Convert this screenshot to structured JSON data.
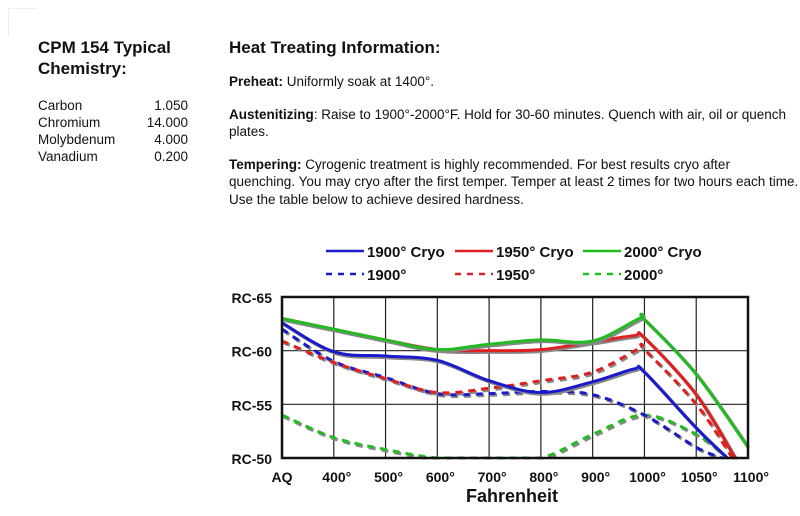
{
  "chemistry": {
    "title": "CPM 154 Typical Chemistry:",
    "title_line1": "CPM 154 Typical",
    "title_line2": "Chemistry:",
    "elements": [
      {
        "name": "Carbon",
        "value": "1.050"
      },
      {
        "name": "Chromium",
        "value": "14.000"
      },
      {
        "name": "Molybdenum",
        "value": "4.000"
      },
      {
        "name": "Vanadium",
        "value": "0.200"
      }
    ]
  },
  "heat_treating": {
    "title": "Heat Treating Information:",
    "preheat": {
      "label": "Preheat:",
      "text": " Uniformly soak at 1400°."
    },
    "austenitizing": {
      "label": "Austenitizing",
      "text": ": Raise to 1900°-2000°F.  Hold for 30-60 minutes.  Quench with air, oil or quench plates."
    },
    "tempering": {
      "label": "Tempering:",
      "text": " Cyrogenic treatment is highly recommended.  For best results cryo after quenching.  You may cryo after the first temper.  Temper at least 2 times for two hours each time.  Use the table below to achieve desired hardness."
    }
  },
  "chart_data": {
    "type": "line",
    "title": "",
    "xlabel": "Fahrenheit",
    "ylabel": "",
    "x_categories": [
      "AQ",
      "400°",
      "500°",
      "600°",
      "700°",
      "800°",
      "900°",
      "1000°",
      "1050°",
      "1100°"
    ],
    "y_ticks": [
      {
        "value": 65,
        "label": "RC-65"
      },
      {
        "value": 60,
        "label": "RC-60"
      },
      {
        "value": 55,
        "label": "RC-55"
      },
      {
        "value": 50,
        "label": "RC-50"
      }
    ],
    "ylim": [
      50,
      65
    ],
    "grid": true,
    "legend_position": "top",
    "series": [
      {
        "name": "1900° Cryo",
        "color": "#1a1acc",
        "dashed": false,
        "points": [
          [
            0,
            62.6
          ],
          [
            1,
            59.9
          ],
          [
            2,
            59.5
          ],
          [
            3,
            59.1
          ],
          [
            4,
            57.2
          ],
          [
            5,
            56.1
          ],
          [
            6,
            57.1
          ],
          [
            6.8,
            58.3
          ],
          [
            7,
            58.0
          ],
          [
            8,
            52.8
          ],
          [
            8.6,
            50
          ]
        ]
      },
      {
        "name": "1950° Cryo",
        "color": "#e02020",
        "dashed": false,
        "points": [
          [
            0,
            63.0
          ],
          [
            1,
            62.0
          ],
          [
            2,
            61.0
          ],
          [
            3,
            60.1
          ],
          [
            4,
            60.0
          ],
          [
            5,
            60.1
          ],
          [
            6,
            60.8
          ],
          [
            6.8,
            61.4
          ],
          [
            7,
            61.2
          ],
          [
            8,
            55.9
          ],
          [
            8.75,
            50
          ]
        ]
      },
      {
        "name": "2000° Cryo",
        "color": "#22bb22",
        "dashed": false,
        "points": [
          [
            0,
            63.0
          ],
          [
            1,
            62.0
          ],
          [
            2,
            61.0
          ],
          [
            3,
            60.1
          ],
          [
            4,
            60.6
          ],
          [
            5,
            61.0
          ],
          [
            6,
            60.9
          ],
          [
            6.9,
            63.0
          ],
          [
            7,
            62.9
          ],
          [
            8,
            57.8
          ],
          [
            9,
            51.0
          ]
        ]
      },
      {
        "name": "1900°",
        "color": "#1a1acc",
        "dashed": true,
        "points": [
          [
            0,
            62.0
          ],
          [
            1,
            59.0
          ],
          [
            2,
            57.5
          ],
          [
            3,
            56.0
          ],
          [
            4,
            56.0
          ],
          [
            5,
            56.2
          ],
          [
            6,
            55.9
          ],
          [
            7,
            54.0
          ],
          [
            8,
            51.0
          ],
          [
            8.5,
            50
          ]
        ]
      },
      {
        "name": "1950°",
        "color": "#e02020",
        "dashed": true,
        "points": [
          [
            0,
            60.9
          ],
          [
            1,
            58.9
          ],
          [
            2,
            57.4
          ],
          [
            3,
            56.1
          ],
          [
            4,
            56.5
          ],
          [
            5,
            57.2
          ],
          [
            6,
            58.0
          ],
          [
            6.9,
            60.2
          ],
          [
            7,
            60.1
          ],
          [
            8,
            55.0
          ],
          [
            8.7,
            50
          ]
        ]
      },
      {
        "name": "2000°",
        "color": "#22bb22",
        "dashed": true,
        "points": [
          [
            0,
            54.0
          ],
          [
            1,
            51.9
          ],
          [
            2,
            50.8
          ],
          [
            3,
            50.0
          ],
          [
            4,
            50.0
          ],
          [
            5,
            50.0
          ],
          [
            6,
            52.2
          ],
          [
            7,
            54.0
          ],
          [
            8,
            52.2
          ],
          [
            8.6,
            50
          ]
        ]
      }
    ]
  }
}
